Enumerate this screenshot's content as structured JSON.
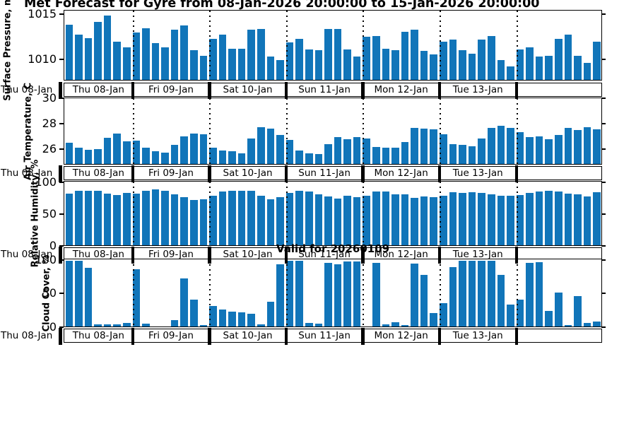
{
  "title": "Met Forecast for Gyre from 08-Jan-2026 20:00:00 to 15-Jan-2026 20:00:00",
  "valid_label": "Valid for 20260109",
  "first_tick_label": "Thu 08-Jan",
  "bar_color": "#1175b9",
  "day_labels": [
    "Thu 08-Jan",
    "Fri 09-Jan",
    "Sat 10-Jan",
    "Sun 11-Jan",
    "Mon 12-Jan",
    "Tue 13-Jan",
    ""
  ],
  "boundary_indices": [
    7,
    15,
    23,
    31,
    39,
    47
  ],
  "chart_data": [
    {
      "type": "bar",
      "ylabel": "Surface Pressure, mb",
      "ylim": [
        1007.66,
        1015.47
      ],
      "yticks": [
        1010,
        1015
      ],
      "x_sections": [
        "Thu 08-Jan",
        "Fri 09-Jan",
        "Sat 10-Jan",
        "Sun 11-Jan",
        "Mon 12-Jan",
        "Tue 13-Jan",
        ""
      ],
      "values": [
        1013.9,
        1012.8,
        1012.4,
        1014.2,
        1014.9,
        1012.0,
        1011.3,
        1013.0,
        1013.5,
        1011.8,
        1011.3,
        1013.3,
        1013.8,
        1011.0,
        1010.4,
        1012.3,
        1012.8,
        1011.2,
        1011.2,
        1013.3,
        1013.4,
        1010.3,
        1009.9,
        1011.9,
        1012.3,
        1011.1,
        1011.0,
        1013.4,
        1013.4,
        1011.1,
        1010.3,
        1012.5,
        1012.6,
        1011.2,
        1011.0,
        1013.1,
        1013.3,
        1010.9,
        1010.5,
        1012.0,
        1012.2,
        1011.0,
        1010.6,
        1012.2,
        1012.6,
        1009.9,
        1009.2,
        1011.1,
        1011.3,
        1010.3,
        1010.4,
        1012.3,
        1012.8,
        1010.4,
        1009.6,
        1012.0
      ]
    },
    {
      "type": "bar",
      "ylabel": "Air Temperature, C",
      "ylim": [
        24.78,
        30.06
      ],
      "yticks": [
        26,
        28,
        30
      ],
      "x_sections": [
        "Thu 08-Jan",
        "Fri 09-Jan",
        "Sat 10-Jan",
        "Sun 11-Jan",
        "Mon 12-Jan",
        "Tue 13-Jan",
        ""
      ],
      "values": [
        26.5,
        26.1,
        25.9,
        26.0,
        26.9,
        27.2,
        26.6,
        26.65,
        26.1,
        25.8,
        25.7,
        26.3,
        27.0,
        27.2,
        27.15,
        26.1,
        25.85,
        25.8,
        25.65,
        26.8,
        27.75,
        27.6,
        27.1,
        26.7,
        25.85,
        25.65,
        25.6,
        26.35,
        26.95,
        26.75,
        26.95,
        26.8,
        26.15,
        26.1,
        26.1,
        26.55,
        27.7,
        27.6,
        27.55,
        27.15,
        26.35,
        26.3,
        26.2,
        26.85,
        27.65,
        27.85,
        27.7,
        27.35,
        26.95,
        27.0,
        26.75,
        27.1,
        27.7,
        27.5,
        27.75,
        27.55
      ]
    },
    {
      "type": "bar",
      "ylabel": "Relative Humidity, %",
      "ylim": [
        0,
        102.2
      ],
      "yticks": [
        0,
        50,
        100
      ],
      "x_sections": [
        "Thu 08-Jan",
        "Fri 09-Jan",
        "Sat 10-Jan",
        "Sun 11-Jan",
        "Mon 12-Jan",
        "Tue 13-Jan",
        ""
      ],
      "values": [
        83,
        88,
        88,
        87,
        83,
        81,
        84,
        83,
        88,
        90,
        88,
        82,
        77,
        73,
        74,
        80,
        86,
        87,
        87,
        88,
        80,
        74,
        77,
        84,
        88,
        86,
        82,
        78,
        75,
        79,
        77,
        80,
        86,
        86,
        82,
        82,
        76,
        78,
        77,
        80,
        85,
        84,
        85,
        84,
        82,
        79,
        80,
        81,
        84,
        86,
        87,
        86,
        83,
        82,
        78,
        85
      ]
    },
    {
      "type": "bar",
      "ylabel": "Cloud Cover, %",
      "ylim": [
        0,
        102
      ],
      "yticks": [
        0,
        50,
        100
      ],
      "x_sections": [
        "Thu 08-Jan",
        "Fri 09-Jan",
        "Sat 10-Jan",
        "Sun 11-Jan",
        "Mon 12-Jan",
        "Tue 13-Jan",
        ""
      ],
      "values": [
        100,
        100,
        89,
        3,
        3,
        3,
        5,
        87,
        4,
        0,
        0,
        10,
        73,
        41,
        2,
        31,
        26,
        23,
        21,
        19,
        3,
        38,
        94,
        100,
        100,
        5,
        4,
        97,
        95,
        99,
        99,
        0,
        97,
        3,
        6,
        2,
        96,
        78,
        20,
        35,
        90,
        100,
        100,
        100,
        100,
        78,
        33,
        41,
        97,
        98,
        24,
        52,
        2,
        46,
        5,
        8
      ]
    }
  ]
}
